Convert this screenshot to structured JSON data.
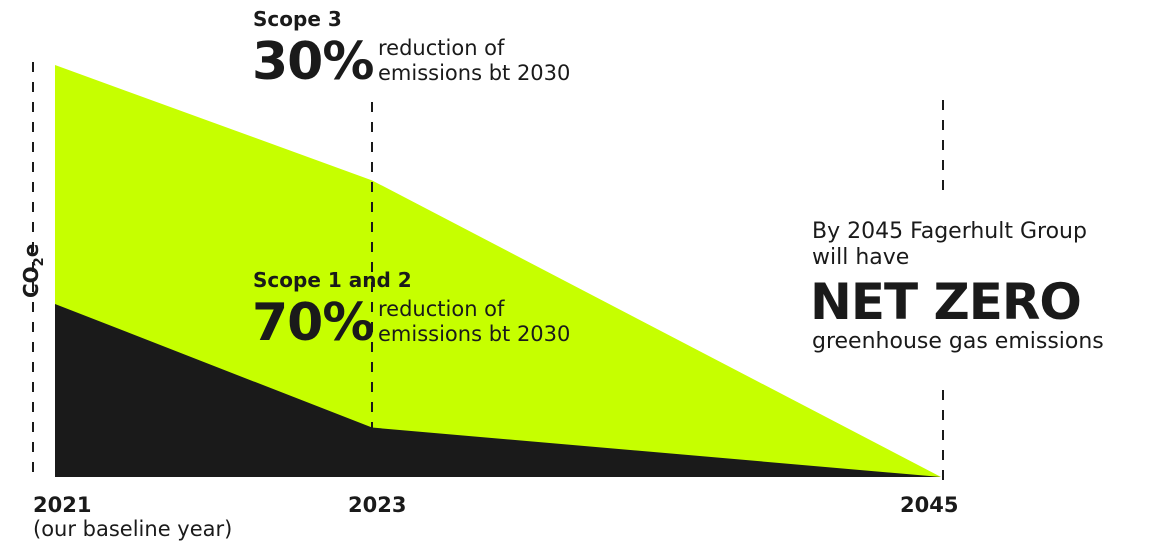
{
  "chart_data": {
    "type": "area",
    "x": [
      "2021",
      "2023",
      "2045"
    ],
    "x_sublabels": [
      "(our baseline year)",
      "",
      ""
    ],
    "ylabel_main": "CO",
    "ylabel_sub": "2",
    "ylabel_end": "e",
    "series": [
      {
        "name": "Scope 3",
        "values": [
          100,
          72,
          0
        ],
        "color": "#c6ff00"
      },
      {
        "name": "Scope 1 and 2",
        "values": [
          42,
          12,
          0
        ],
        "color": "#1a1a1a"
      }
    ],
    "grid": "dashed vertical lines at each year",
    "annotations": [
      {
        "title": "Scope 3",
        "value": "30%",
        "text_line1": "reduction of",
        "text_line2": "emissions bt 2030"
      },
      {
        "title": "Scope 1 and 2",
        "value": "70%",
        "text_line1": "reduction of",
        "text_line2": "emissions bt 2030"
      }
    ],
    "note": {
      "line1": "By 2045 Fagerhult Group",
      "line2": "will have",
      "headline": "NET ZERO",
      "line3": "greenhouse gas emissions"
    }
  }
}
